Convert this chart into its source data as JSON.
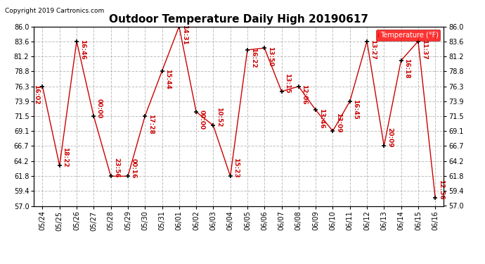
{
  "title": "Outdoor Temperature Daily High 20190617",
  "copyright": "Copyright 2019 Cartronics.com",
  "legend_label": "Temperature (°F)",
  "background_color": "#ffffff",
  "plot_bg_color": "#ffffff",
  "grid_color": "#b0b0b0",
  "line_color": "#cc0000",
  "marker_color": "#000000",
  "annotation_color": "#cc0000",
  "ylim": [
    57.0,
    86.0
  ],
  "yticks": [
    57.0,
    59.4,
    61.8,
    64.2,
    66.7,
    69.1,
    71.5,
    73.9,
    76.3,
    78.8,
    81.2,
    83.6,
    86.0
  ],
  "dates": [
    "05/24",
    "05/25",
    "05/26",
    "05/27",
    "05/28",
    "05/29",
    "05/30",
    "05/31",
    "06/01",
    "06/02",
    "06/03",
    "06/04",
    "06/05",
    "06/06",
    "06/07",
    "06/08",
    "06/09",
    "06/10",
    "06/11",
    "06/12",
    "06/13",
    "06/14",
    "06/15",
    "06/16"
  ],
  "values": [
    76.3,
    63.5,
    83.6,
    71.5,
    61.8,
    61.8,
    71.5,
    78.8,
    86.0,
    72.2,
    70.0,
    61.8,
    82.2,
    82.5,
    75.5,
    76.3,
    72.5,
    69.1,
    73.9,
    83.6,
    66.7,
    80.5,
    83.6,
    58.3
  ],
  "annotations": [
    {
      "idx": 0,
      "label": "16:02",
      "side": "left"
    },
    {
      "idx": 1,
      "label": "18:22",
      "side": "right_down"
    },
    {
      "idx": 2,
      "label": "16:46",
      "side": "right_up"
    },
    {
      "idx": 3,
      "label": "00:00",
      "side": "right_down"
    },
    {
      "idx": 4,
      "label": "23:56",
      "side": "right_down"
    },
    {
      "idx": 5,
      "label": "00:16",
      "side": "right_down"
    },
    {
      "idx": 6,
      "label": "17:28",
      "side": "right_up"
    },
    {
      "idx": 7,
      "label": "15:44",
      "side": "right_up"
    },
    {
      "idx": 8,
      "label": "14:31",
      "side": "right_up"
    },
    {
      "idx": 9,
      "label": "00:00",
      "side": "right_up"
    },
    {
      "idx": 10,
      "label": "10:52",
      "side": "right_down"
    },
    {
      "idx": 11,
      "label": "15:23",
      "side": "right_down"
    },
    {
      "idx": 12,
      "label": "16:22",
      "side": "right_up"
    },
    {
      "idx": 13,
      "label": "13:50",
      "side": "right_up"
    },
    {
      "idx": 14,
      "label": "13:15",
      "side": "right_down"
    },
    {
      "idx": 15,
      "label": "12:06",
      "side": "right_up"
    },
    {
      "idx": 16,
      "label": "13:46",
      "side": "right_up"
    },
    {
      "idx": 17,
      "label": "13:09",
      "side": "right_down"
    },
    {
      "idx": 18,
      "label": "16:45",
      "side": "right_up"
    },
    {
      "idx": 19,
      "label": "13:27",
      "side": "right_up"
    },
    {
      "idx": 20,
      "label": "20:09",
      "side": "right_down"
    },
    {
      "idx": 21,
      "label": "16:18",
      "side": "right_up"
    },
    {
      "idx": 22,
      "label": "11:37",
      "side": "right_up"
    },
    {
      "idx": 23,
      "label": "12:56",
      "side": "right_down"
    }
  ]
}
